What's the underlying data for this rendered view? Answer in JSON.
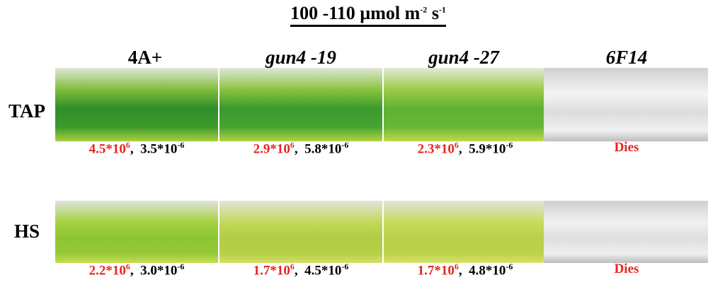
{
  "header": {
    "title": [
      {
        "text": "100 -110 µmol m",
        "sup": "-2"
      },
      {
        "text": " s",
        "sup": "-1"
      }
    ]
  },
  "columns": [
    "4A+",
    "gun4 -19",
    "gun4 -27",
    "6F14"
  ],
  "rows": [
    {
      "label": "TAP",
      "cells": [
        {
          "growth": {
            "text": "4.5*10",
            "sup": "6"
          },
          "sep": ",",
          "other": {
            "text": "3.5*10",
            "sup": "-6"
          }
        },
        {
          "growth": {
            "text": "2.9*10",
            "sup": "6"
          },
          "sep": ",",
          "other": {
            "text": "5.8*10",
            "sup": "-6"
          }
        },
        {
          "growth": {
            "text": "2.3*10",
            "sup": "6"
          },
          "sep": ",",
          "other": {
            "text": "5.9*10",
            "sup": "-6"
          }
        },
        {
          "status": "Dies"
        }
      ]
    },
    {
      "label": "HS",
      "cells": [
        {
          "growth": {
            "text": "2.2*10",
            "sup": "6"
          },
          "sep": ",",
          "other": {
            "text": "3.0*10",
            "sup": "-6"
          }
        },
        {
          "growth": {
            "text": "1.7*10",
            "sup": "6"
          },
          "sep": ",",
          "other": {
            "text": "4.5*10",
            "sup": "-6"
          }
        },
        {
          "growth": {
            "text": "1.7*10",
            "sup": "6"
          },
          "sep": ",",
          "other": {
            "text": "4.8*10",
            "sup": "-6"
          }
        },
        {
          "status": "Dies"
        }
      ]
    }
  ]
}
